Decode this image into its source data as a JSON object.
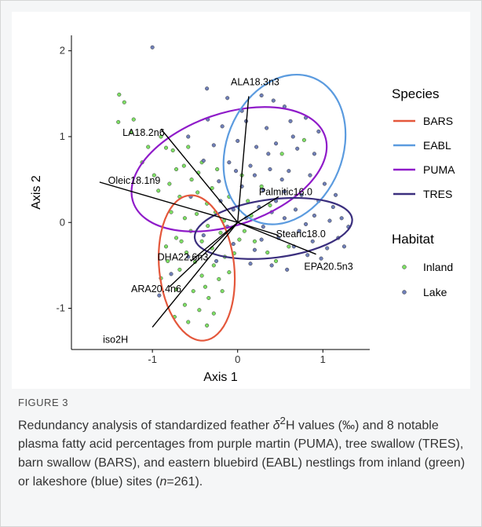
{
  "caption": {
    "label": "FIGURE 3",
    "text_1": "Redundancy analysis of standardized feather ",
    "delta": "δ",
    "sup": "2",
    "text_2": "H values (‰) and 8 notable plasma fatty acid percentages from purple martin (PUMA), tree swallow (TRES), barn swallow (BARS), and eastern bluebird (EABL) nestlings from inland (green) or lakeshore (blue) sites (",
    "n_symbol": "n",
    "text_3": "=261)."
  },
  "chart_data": {
    "type": "scatter",
    "xlabel": "Axis 1",
    "ylabel": "Axis 2",
    "xlim": [
      -1.95,
      1.55
    ],
    "ylim": [
      -1.48,
      2.18
    ],
    "x_ticks": [
      -1,
      0,
      1
    ],
    "y_ticks": [
      -1,
      0,
      1,
      2
    ],
    "grid": false,
    "colors": {
      "Inland": "#7ddf64",
      "Lake": "#6f7fb8",
      "BARS": "#e4573b",
      "EABL": "#5b9bdf",
      "PUMA": "#8f1bc9",
      "TRES": "#3b2f7e"
    },
    "legend_species": {
      "title": "Species",
      "placement": "right",
      "entries": [
        "BARS",
        "EABL",
        "PUMA",
        "TRES"
      ]
    },
    "legend_habitat": {
      "title": "Habitat",
      "placement": "right",
      "entries": [
        "Inland",
        "Lake"
      ]
    },
    "ellipses": [
      {
        "name": "PUMA",
        "cx": -0.1,
        "cy": 0.62,
        "rx": 1.19,
        "ry": 0.65,
        "angle_deg": 19
      },
      {
        "name": "EABL",
        "cx": 0.55,
        "cy": 0.85,
        "rx": 0.68,
        "ry": 0.9,
        "angle_deg": -22
      },
      {
        "name": "TRES",
        "cx": 0.42,
        "cy": -0.07,
        "rx": 0.93,
        "ry": 0.34,
        "angle_deg": 7
      },
      {
        "name": "BARS",
        "cx": -0.48,
        "cy": -0.53,
        "rx": 0.44,
        "ry": 0.85,
        "angle_deg": 6
      }
    ],
    "vectors": [
      {
        "label": "iso2H",
        "x": -1.0,
        "y": -1.22
      },
      {
        "label": "ARA20.4n6",
        "x": -0.8,
        "y": -0.75
      },
      {
        "label": "DHA22.6n3",
        "x": -0.55,
        "y": -0.45
      },
      {
        "label": "Oleic18.1n9",
        "x": -1.62,
        "y": 0.47
      },
      {
        "label": "LA18.2n6",
        "x": -0.9,
        "y": 1.09
      },
      {
        "label": "ALA18.3n3",
        "x": 0.13,
        "y": 1.47
      },
      {
        "label": "Palmitic16.0",
        "x": 0.48,
        "y": 0.3
      },
      {
        "label": "Stearic18.0",
        "x": 0.48,
        "y": -0.15
      },
      {
        "label": "EPA20.5n3",
        "x": 0.92,
        "y": -0.37
      }
    ],
    "points": [
      {
        "habitat": "Lake",
        "x": -1.0,
        "y": 2.04
      },
      {
        "habitat": "Inland",
        "x": -1.39,
        "y": 1.49
      },
      {
        "habitat": "Inland",
        "x": -1.33,
        "y": 1.4
      },
      {
        "habitat": "Inland",
        "x": -1.4,
        "y": 1.17
      },
      {
        "habitat": "Inland",
        "x": -1.22,
        "y": 1.2
      },
      {
        "habitat": "Inland",
        "x": -1.25,
        "y": 1.05
      },
      {
        "habitat": "Inland",
        "x": -0.9,
        "y": 1.0
      },
      {
        "habitat": "Inland",
        "x": -0.84,
        "y": 0.87
      },
      {
        "habitat": "Inland",
        "x": -1.12,
        "y": 0.7
      },
      {
        "habitat": "Inland",
        "x": -0.76,
        "y": 0.84
      },
      {
        "habitat": "Inland",
        "x": -0.63,
        "y": 0.66
      },
      {
        "habitat": "Inland",
        "x": -0.54,
        "y": 0.5
      },
      {
        "habitat": "Inland",
        "x": -0.47,
        "y": 0.35
      },
      {
        "habitat": "Inland",
        "x": -0.8,
        "y": 0.45
      },
      {
        "habitat": "Inland",
        "x": -0.93,
        "y": 0.37
      },
      {
        "habitat": "Inland",
        "x": -0.3,
        "y": 0.4
      },
      {
        "habitat": "Inland",
        "x": -0.42,
        "y": 0.7
      },
      {
        "habitat": "Inland",
        "x": -0.58,
        "y": 0.88
      },
      {
        "habitat": "Inland",
        "x": -0.68,
        "y": 0.3
      },
      {
        "habitat": "Inland",
        "x": -0.36,
        "y": 0.22
      },
      {
        "habitat": "Inland",
        "x": -0.26,
        "y": 0.12
      },
      {
        "habitat": "Inland",
        "x": -0.48,
        "y": 0.1
      },
      {
        "habitat": "Inland",
        "x": -0.62,
        "y": 0.05
      },
      {
        "habitat": "Inland",
        "x": -0.16,
        "y": 0.02
      },
      {
        "habitat": "Inland",
        "x": -0.35,
        "y": -0.04
      },
      {
        "habitat": "Inland",
        "x": -0.55,
        "y": -0.1
      },
      {
        "habitat": "Inland",
        "x": -0.72,
        "y": -0.18
      },
      {
        "habitat": "Inland",
        "x": -0.2,
        "y": -0.12
      },
      {
        "habitat": "Inland",
        "x": -0.42,
        "y": -0.22
      },
      {
        "habitat": "Inland",
        "x": -0.3,
        "y": -0.3
      },
      {
        "habitat": "Inland",
        "x": -0.6,
        "y": -0.35
      },
      {
        "habitat": "Inland",
        "x": -0.84,
        "y": -0.28
      },
      {
        "habitat": "Inland",
        "x": -0.5,
        "y": -0.46
      },
      {
        "habitat": "Inland",
        "x": -0.28,
        "y": -0.5
      },
      {
        "habitat": "Inland",
        "x": -0.15,
        "y": -0.4
      },
      {
        "habitat": "Inland",
        "x": -0.68,
        "y": -0.55
      },
      {
        "habitat": "Inland",
        "x": -0.42,
        "y": -0.62
      },
      {
        "habitat": "Inland",
        "x": -0.22,
        "y": -0.66
      },
      {
        "habitat": "Inland",
        "x": -0.9,
        "y": -0.65
      },
      {
        "habitat": "Inland",
        "x": -0.72,
        "y": -0.78
      },
      {
        "habitat": "Inland",
        "x": -0.52,
        "y": -0.8
      },
      {
        "habitat": "Inland",
        "x": -0.34,
        "y": -0.88
      },
      {
        "habitat": "Inland",
        "x": -0.62,
        "y": -0.96
      },
      {
        "habitat": "Inland",
        "x": -0.45,
        "y": -1.02
      },
      {
        "habitat": "Inland",
        "x": -0.74,
        "y": -1.1
      },
      {
        "habitat": "Inland",
        "x": -0.58,
        "y": -1.16
      },
      {
        "habitat": "Inland",
        "x": -0.36,
        "y": -1.2
      },
      {
        "habitat": "Inland",
        "x": -0.28,
        "y": -1.06
      },
      {
        "habitat": "Inland",
        "x": -0.04,
        "y": -0.36
      },
      {
        "habitat": "Inland",
        "x": 0.08,
        "y": -0.1
      },
      {
        "habitat": "Inland",
        "x": 0.2,
        "y": -0.22
      },
      {
        "habitat": "Inland",
        "x": 0.35,
        "y": -0.35
      },
      {
        "habitat": "Inland",
        "x": 0.12,
        "y": 0.25
      },
      {
        "habitat": "Inland",
        "x": 0.05,
        "y": 0.55
      },
      {
        "habitat": "Inland",
        "x": -0.1,
        "y": 0.3
      },
      {
        "habitat": "Inland",
        "x": 0.45,
        "y": -0.45
      },
      {
        "habitat": "Inland",
        "x": 0.6,
        "y": -0.28
      },
      {
        "habitat": "Inland",
        "x": 0.28,
        "y": 0.42
      },
      {
        "habitat": "Inland",
        "x": 0.52,
        "y": 0.8
      },
      {
        "habitat": "Inland",
        "x": 0.78,
        "y": 0.96
      },
      {
        "habitat": "Inland",
        "x": -0.98,
        "y": 0.55
      },
      {
        "habitat": "Inland",
        "x": -1.05,
        "y": 0.88
      },
      {
        "habitat": "Inland",
        "x": -0.1,
        "y": -0.58
      },
      {
        "habitat": "Inland",
        "x": -0.78,
        "y": 0.12
      },
      {
        "habitat": "Inland",
        "x": -0.66,
        "y": -0.22
      },
      {
        "habitat": "Inland",
        "x": -0.38,
        "y": -0.75
      },
      {
        "habitat": "Inland",
        "x": -0.18,
        "y": -0.8
      },
      {
        "habitat": "Inland",
        "x": -0.82,
        "y": -0.45
      },
      {
        "habitat": "Inland",
        "x": 0.02,
        "y": -0.2
      },
      {
        "habitat": "Inland",
        "x": 0.16,
        "y": 0.08
      },
      {
        "habitat": "Inland",
        "x": -0.46,
        "y": 0.58
      },
      {
        "habitat": "Inland",
        "x": -0.24,
        "y": 0.62
      },
      {
        "habitat": "Inland",
        "x": -0.72,
        "y": 0.62
      },
      {
        "habitat": "Inland",
        "x": 0.38,
        "y": 0.2
      },
      {
        "habitat": "Lake",
        "x": -0.36,
        "y": 1.56
      },
      {
        "habitat": "Lake",
        "x": -0.12,
        "y": 1.45
      },
      {
        "habitat": "Lake",
        "x": 0.28,
        "y": 1.48
      },
      {
        "habitat": "Lake",
        "x": 0.42,
        "y": 1.42
      },
      {
        "habitat": "Lake",
        "x": 0.55,
        "y": 1.35
      },
      {
        "habitat": "Lake",
        "x": -0.35,
        "y": 1.2
      },
      {
        "habitat": "Lake",
        "x": -0.18,
        "y": 1.12
      },
      {
        "habitat": "Lake",
        "x": 0.1,
        "y": 1.18
      },
      {
        "habitat": "Lake",
        "x": 0.34,
        "y": 1.1
      },
      {
        "habitat": "Lake",
        "x": 0.62,
        "y": 1.18
      },
      {
        "habitat": "Lake",
        "x": 0.8,
        "y": 1.22
      },
      {
        "habitat": "Lake",
        "x": 0.95,
        "y": 1.06
      },
      {
        "habitat": "Lake",
        "x": -0.58,
        "y": 1.0
      },
      {
        "habitat": "Lake",
        "x": -0.28,
        "y": 0.9
      },
      {
        "habitat": "Lake",
        "x": 0.0,
        "y": 0.95
      },
      {
        "habitat": "Lake",
        "x": 0.22,
        "y": 0.88
      },
      {
        "habitat": "Lake",
        "x": 0.45,
        "y": 0.92
      },
      {
        "habitat": "Lake",
        "x": 0.7,
        "y": 0.86
      },
      {
        "habitat": "Lake",
        "x": 0.9,
        "y": 0.8
      },
      {
        "habitat": "Lake",
        "x": -0.4,
        "y": 0.72
      },
      {
        "habitat": "Lake",
        "x": -0.1,
        "y": 0.7
      },
      {
        "habitat": "Lake",
        "x": 0.15,
        "y": 0.66
      },
      {
        "habitat": "Lake",
        "x": 0.38,
        "y": 0.62
      },
      {
        "habitat": "Lake",
        "x": 0.6,
        "y": 0.6
      },
      {
        "habitat": "Lake",
        "x": 0.85,
        "y": 0.55
      },
      {
        "habitat": "Lake",
        "x": 1.02,
        "y": 0.45
      },
      {
        "habitat": "Lake",
        "x": -0.22,
        "y": 0.48
      },
      {
        "habitat": "Lake",
        "x": 0.05,
        "y": 0.42
      },
      {
        "habitat": "Lake",
        "x": 0.3,
        "y": 0.38
      },
      {
        "habitat": "Lake",
        "x": 0.55,
        "y": 0.36
      },
      {
        "habitat": "Lake",
        "x": 0.75,
        "y": 0.32
      },
      {
        "habitat": "Lake",
        "x": 0.95,
        "y": 0.25
      },
      {
        "habitat": "Lake",
        "x": 1.12,
        "y": 0.18
      },
      {
        "habitat": "Lake",
        "x": 1.22,
        "y": 0.05
      },
      {
        "habitat": "Lake",
        "x": 1.3,
        "y": -0.05
      },
      {
        "habitat": "Lake",
        "x": 1.18,
        "y": -0.18
      },
      {
        "habitat": "Lake",
        "x": 1.05,
        "y": -0.3
      },
      {
        "habitat": "Lake",
        "x": 0.88,
        "y": -0.22
      },
      {
        "habitat": "Lake",
        "x": 0.72,
        "y": -0.1
      },
      {
        "habitat": "Lake",
        "x": 0.55,
        "y": 0.05
      },
      {
        "habitat": "Lake",
        "x": 0.4,
        "y": 0.12
      },
      {
        "habitat": "Lake",
        "x": 0.25,
        "y": 0.18
      },
      {
        "habitat": "Lake",
        "x": 0.1,
        "y": 0.05
      },
      {
        "habitat": "Lake",
        "x": -0.05,
        "y": 0.15
      },
      {
        "habitat": "Lake",
        "x": -0.2,
        "y": 0.25
      },
      {
        "habitat": "Lake",
        "x": 0.3,
        "y": -0.05
      },
      {
        "habitat": "Lake",
        "x": 0.48,
        "y": -0.18
      },
      {
        "habitat": "Lake",
        "x": 0.66,
        "y": -0.28
      },
      {
        "habitat": "Lake",
        "x": 0.82,
        "y": -0.38
      },
      {
        "habitat": "Lake",
        "x": 0.98,
        "y": -0.42
      },
      {
        "habitat": "Lake",
        "x": 0.2,
        "y": -0.32
      },
      {
        "habitat": "Lake",
        "x": 0.4,
        "y": -0.5
      },
      {
        "habitat": "Lake",
        "x": 0.58,
        "y": -0.55
      },
      {
        "habitat": "Lake",
        "x": -0.05,
        "y": -0.25
      },
      {
        "habitat": "Lake",
        "x": -0.4,
        "y": -0.15
      },
      {
        "habitat": "Lake",
        "x": -0.58,
        "y": -0.4
      },
      {
        "habitat": "Lake",
        "x": -0.78,
        "y": -0.6
      },
      {
        "habitat": "Lake",
        "x": -0.25,
        "y": -0.45
      },
      {
        "habitat": "Lake",
        "x": -0.92,
        "y": -0.85
      },
      {
        "habitat": "Lake",
        "x": 0.15,
        "y": -0.48
      },
      {
        "habitat": "Lake",
        "x": 0.68,
        "y": 0.15
      },
      {
        "habitat": "Lake",
        "x": 0.9,
        "y": 0.08
      },
      {
        "habitat": "Lake",
        "x": 1.08,
        "y": 0.02
      },
      {
        "habitat": "Lake",
        "x": 0.52,
        "y": 0.5
      },
      {
        "habitat": "Lake",
        "x": 0.2,
        "y": 0.55
      },
      {
        "habitat": "Lake",
        "x": -0.02,
        "y": 0.6
      },
      {
        "habitat": "Lake",
        "x": 0.36,
        "y": 0.8
      },
      {
        "habitat": "Lake",
        "x": 0.65,
        "y": 1.0
      },
      {
        "habitat": "Lake",
        "x": 0.05,
        "y": 1.3
      },
      {
        "habitat": "Lake",
        "x": -0.55,
        "y": 0.3
      },
      {
        "habitat": "Lake",
        "x": 1.15,
        "y": 0.32
      },
      {
        "habitat": "Lake",
        "x": 0.8,
        "y": -0.02
      },
      {
        "habitat": "Lake",
        "x": 0.28,
        "y": -0.2
      },
      {
        "habitat": "Lake",
        "x": -0.12,
        "y": -0.05
      },
      {
        "habitat": "Lake",
        "x": 0.45,
        "y": 0.25
      },
      {
        "habitat": "Lake",
        "x": 1.25,
        "y": -0.28
      }
    ]
  }
}
